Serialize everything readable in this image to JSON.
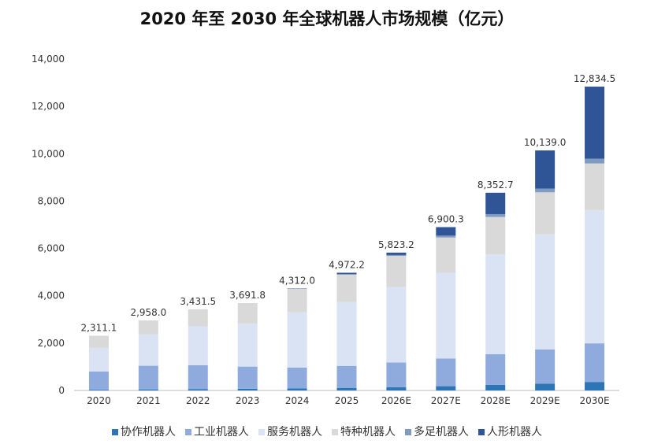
{
  "chart_data": {
    "type": "bar",
    "stacked": true,
    "title": "2020 年至 2030 年全球机器人市场规模（亿元）",
    "categories": [
      "2020",
      "2021",
      "2022",
      "2023",
      "2024",
      "2025",
      "2026E",
      "2027E",
      "2028E",
      "2029E",
      "2030E"
    ],
    "ylim": [
      0,
      14000
    ],
    "yticks": [
      "0",
      "2,000",
      "4,000",
      "6,000",
      "8,000",
      "10,000",
      "12,000",
      "14,000"
    ],
    "totals": [
      "2,311.1",
      "2,958.0",
      "3,431.5",
      "3,691.8",
      "4,312.0",
      "4,972.2",
      "5,823.2",
      "6,900.3",
      "8,352.7",
      "10,139.0",
      "12,834.5"
    ],
    "total_values": [
      2311.1,
      2958.0,
      3431.5,
      3691.8,
      4312.0,
      4972.2,
      5823.2,
      6900.3,
      8352.7,
      10139.0,
      12834.5
    ],
    "legend_position": "bottom",
    "grid": false,
    "series": [
      {
        "name": "协作机器人",
        "color": "#2e75b6",
        "values": [
          30,
          45,
          60,
          70,
          90,
          110,
          140,
          180,
          240,
          290,
          360
        ]
      },
      {
        "name": "工业机器人",
        "color": "#8faadc",
        "values": [
          770,
          1000,
          1010,
          940,
          880,
          930,
          1040,
          1170,
          1290,
          1440,
          1630
        ]
      },
      {
        "name": "服务机器人",
        "color": "#dae3f3",
        "values": [
          1000,
          1320,
          1640,
          1820,
          2330,
          2700,
          3190,
          3620,
          4220,
          4860,
          5630
        ]
      },
      {
        "name": "特种机器人",
        "color": "#d9d9d9",
        "values": [
          511.1,
          593,
          721.5,
          861.8,
          992,
          1152.2,
          1313.2,
          1490.3,
          1580,
          1780,
          1970
        ]
      },
      {
        "name": "多足机器人",
        "color": "#7f9cc0",
        "values": [
          0,
          0,
          0,
          0,
          10,
          20,
          40,
          80,
          120,
          160,
          200
        ]
      },
      {
        "name": "人形机器人",
        "color": "#2f5597",
        "values": [
          0,
          0,
          0,
          0,
          10,
          60,
          100,
          360,
          902.7,
          1609,
          3044.5
        ]
      }
    ]
  }
}
